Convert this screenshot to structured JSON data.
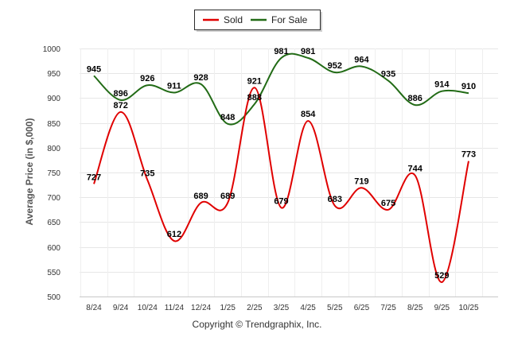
{
  "chart_data": {
    "type": "line",
    "title": "",
    "xlabel": "",
    "ylabel": "Average Price (in $,000)",
    "categories": [
      "8/24",
      "9/24",
      "10/24",
      "11/24",
      "12/24",
      "1/25",
      "2/25",
      "3/25",
      "4/25",
      "5/25",
      "6/25",
      "7/25",
      "8/25",
      "9/25",
      "10/25"
    ],
    "ylim": [
      500,
      1000
    ],
    "yticks": [
      500,
      550,
      600,
      650,
      700,
      750,
      800,
      850,
      900,
      950,
      1000
    ],
    "grid": true,
    "legend_position": "top-center",
    "series": [
      {
        "name": "Sold",
        "color": "#e00000",
        "values": [
          727,
          872,
          735,
          612,
          689,
          689,
          921,
          679,
          854,
          683,
          719,
          675,
          744,
          529,
          773
        ]
      },
      {
        "name": "For Sale",
        "color": "#226b16",
        "values": [
          945,
          896,
          926,
          911,
          928,
          848,
          888,
          981,
          981,
          952,
          964,
          935,
          886,
          914,
          910
        ]
      }
    ]
  },
  "footer": {
    "copyright": "Copyright © Trendgraphix, Inc."
  }
}
